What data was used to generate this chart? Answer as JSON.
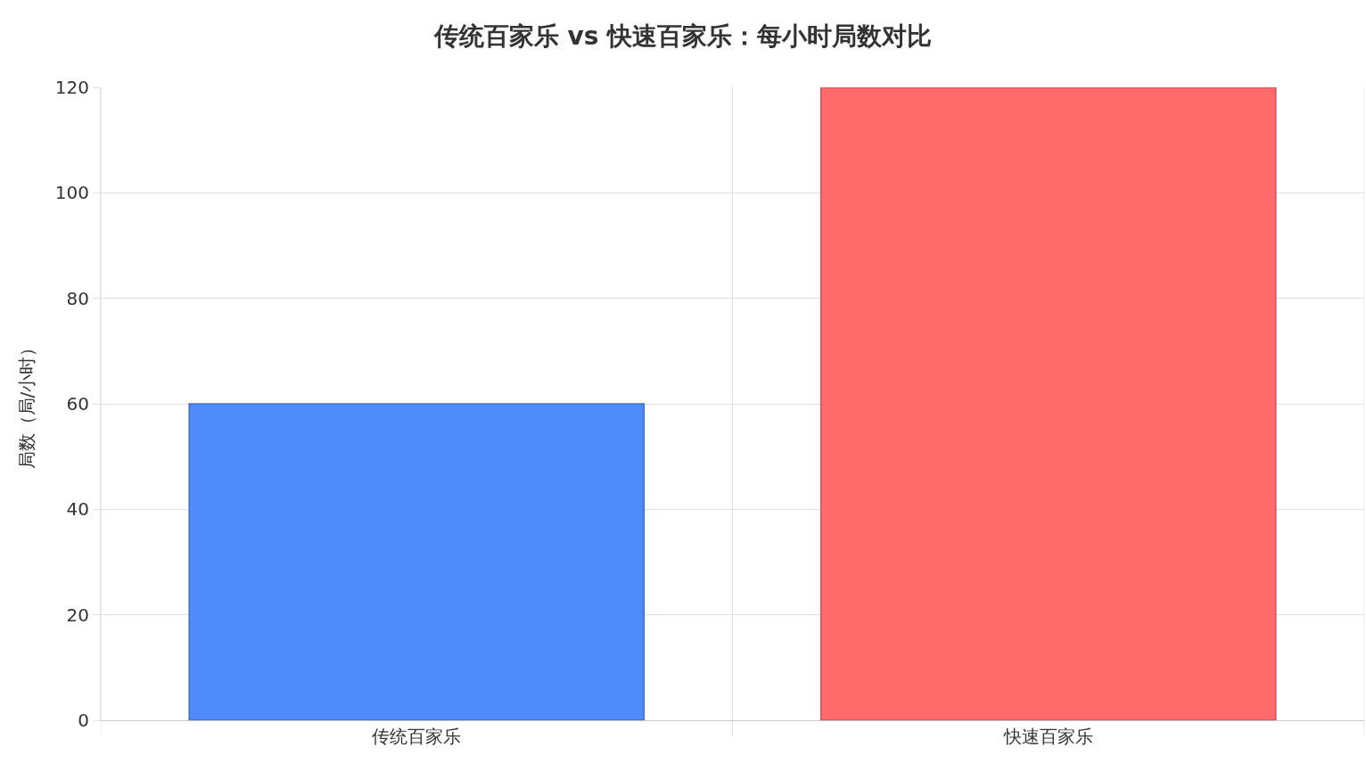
{
  "chart_data": {
    "type": "bar",
    "title": "传统百家乐 vs 快速百家乐：每小时局数对比",
    "ylabel": "局数（局/小时）",
    "categories": [
      "传统百家乐",
      "快速百家乐"
    ],
    "values": [
      60,
      120
    ],
    "colors": [
      "#4e8af9",
      "#ff6b6b"
    ],
    "ylim": [
      0,
      120
    ],
    "yticks": [
      0,
      20,
      40,
      60,
      80,
      100,
      120
    ],
    "grid": true
  }
}
